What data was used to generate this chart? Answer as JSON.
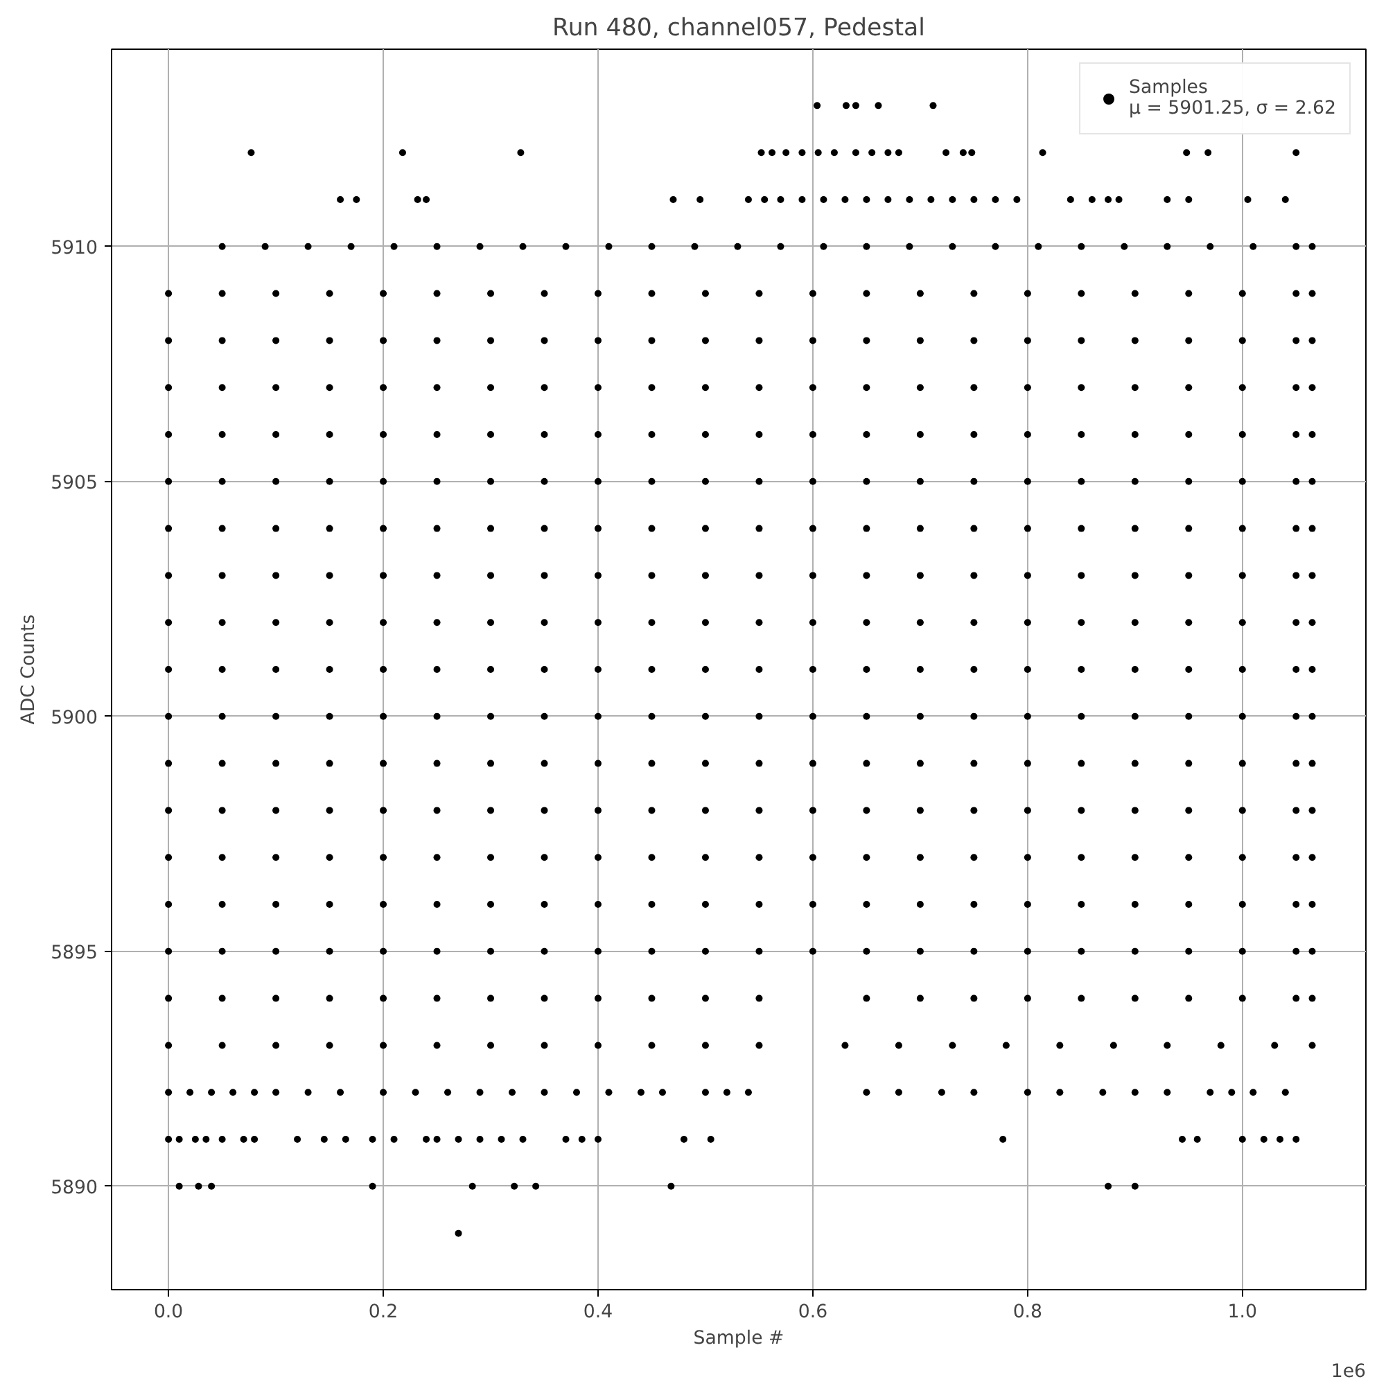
{
  "chart_data": {
    "type": "scatter",
    "title": "Run 480, channel057, Pedestal",
    "xlabel": "Sample #",
    "ylabel": "ADC Counts",
    "annotations": [
      "1e6"
    ],
    "xlim": [
      -0.053,
      1.115
    ],
    "ylim": [
      5887.8,
      5914.2
    ],
    "xticks": [
      {
        "value": 0,
        "label": "0.0"
      },
      0.2,
      0.4,
      0.6,
      0.8,
      {
        "value": 1,
        "label": "1.0"
      }
    ],
    "yticks": [
      5890,
      5895,
      5900,
      5905,
      5910
    ],
    "grid": true,
    "legend": "top right",
    "marker": "circle",
    "series": [
      {
        "name": "Samples\nμ = 5901.25, σ = 2.62",
        "color": "#000000",
        "x": [
          0.604,
          0.631,
          0.64,
          0.661,
          0.712
        ],
        "values": [
          5913,
          5913,
          5913,
          5913,
          5913
        ]
      },
      {
        "color": "#000000",
        "x": [
          0.077,
          0.218,
          0.328,
          0.552,
          0.562,
          0.575,
          0.59,
          0.605,
          0.62,
          0.64,
          0.655,
          0.67,
          0.68,
          0.724,
          0.74,
          0.748,
          0.814,
          0.948,
          0.968,
          1.05
        ],
        "values": [
          5912,
          5912,
          5912,
          5912,
          5912,
          5912,
          5912,
          5912,
          5912,
          5912,
          5912,
          5912,
          5912,
          5912,
          5912,
          5912,
          5912,
          5912,
          5912,
          5912
        ]
      },
      {
        "color": "#000000",
        "x": [
          0.16,
          0.175,
          0.232,
          0.24,
          0.47,
          0.495,
          0.54,
          0.555,
          0.57,
          0.59,
          0.61,
          0.63,
          0.65,
          0.67,
          0.69,
          0.71,
          0.73,
          0.75,
          0.77,
          0.79,
          0.84,
          0.86,
          0.875,
          0.885,
          0.93,
          0.95,
          1.005,
          1.04
        ],
        "values": [
          5911,
          5911,
          5911,
          5911,
          5911,
          5911,
          5911,
          5911,
          5911,
          5911,
          5911,
          5911,
          5911,
          5911,
          5911,
          5911,
          5911,
          5911,
          5911,
          5911,
          5911,
          5911,
          5911,
          5911,
          5911,
          5911,
          5911,
          5911
        ]
      },
      {
        "color": "#000000",
        "x": [
          0.05,
          0.09,
          0.13,
          0.17,
          0.21,
          0.25,
          0.29,
          0.33,
          0.37,
          0.41,
          0.45,
          0.49,
          0.53,
          0.57,
          0.61,
          0.65,
          0.69,
          0.73,
          0.77,
          0.81,
          0.85,
          0.89,
          0.93,
          0.97,
          1.01,
          1.05,
          1.065
        ],
        "values": [
          5910,
          5910,
          5910,
          5910,
          5910,
          5910,
          5910,
          5910,
          5910,
          5910,
          5910,
          5910,
          5910,
          5910,
          5910,
          5910,
          5910,
          5910,
          5910,
          5910,
          5910,
          5910,
          5910,
          5910,
          5910,
          5910,
          5910
        ]
      },
      {
        "color": "#000000",
        "x": [
          0,
          0.05,
          0.1,
          0.15,
          0.2,
          0.25,
          0.3,
          0.35,
          0.4,
          0.45,
          0.5,
          0.55,
          0.6,
          0.65,
          0.7,
          0.75,
          0.8,
          0.85,
          0.9,
          0.95,
          1.0,
          1.05,
          1.065
        ],
        "values": [
          5909,
          5909,
          5909,
          5909,
          5909,
          5909,
          5909,
          5909,
          5909,
          5909,
          5909,
          5909,
          5909,
          5909,
          5909,
          5909,
          5909,
          5909,
          5909,
          5909,
          5909,
          5909,
          5909
        ]
      },
      {
        "color": "#000000",
        "x": [
          0,
          0.05,
          0.1,
          0.15,
          0.2,
          0.25,
          0.3,
          0.35,
          0.4,
          0.45,
          0.5,
          0.55,
          0.6,
          0.65,
          0.7,
          0.75,
          0.8,
          0.85,
          0.9,
          0.95,
          1.0,
          1.05,
          1.065
        ],
        "values": [
          5908,
          5908,
          5908,
          5908,
          5908,
          5908,
          5908,
          5908,
          5908,
          5908,
          5908,
          5908,
          5908,
          5908,
          5908,
          5908,
          5908,
          5908,
          5908,
          5908,
          5908,
          5908,
          5908
        ]
      },
      {
        "color": "#000000",
        "x": [
          0,
          0.05,
          0.1,
          0.15,
          0.2,
          0.25,
          0.3,
          0.35,
          0.4,
          0.45,
          0.5,
          0.55,
          0.6,
          0.65,
          0.7,
          0.75,
          0.8,
          0.85,
          0.9,
          0.95,
          1.0,
          1.05,
          1.065
        ],
        "values": [
          5907,
          5907,
          5907,
          5907,
          5907,
          5907,
          5907,
          5907,
          5907,
          5907,
          5907,
          5907,
          5907,
          5907,
          5907,
          5907,
          5907,
          5907,
          5907,
          5907,
          5907,
          5907,
          5907
        ]
      },
      {
        "color": "#000000",
        "x": [
          0,
          0.05,
          0.1,
          0.15,
          0.2,
          0.25,
          0.3,
          0.35,
          0.4,
          0.45,
          0.5,
          0.55,
          0.6,
          0.65,
          0.7,
          0.75,
          0.8,
          0.85,
          0.9,
          0.95,
          1.0,
          1.05,
          1.065
        ],
        "values": [
          5906,
          5906,
          5906,
          5906,
          5906,
          5906,
          5906,
          5906,
          5906,
          5906,
          5906,
          5906,
          5906,
          5906,
          5906,
          5906,
          5906,
          5906,
          5906,
          5906,
          5906,
          5906,
          5906
        ]
      },
      {
        "color": "#000000",
        "x": [
          0,
          0.05,
          0.1,
          0.15,
          0.2,
          0.25,
          0.3,
          0.35,
          0.4,
          0.45,
          0.5,
          0.55,
          0.6,
          0.65,
          0.7,
          0.75,
          0.8,
          0.85,
          0.9,
          0.95,
          1.0,
          1.05,
          1.065
        ],
        "values": [
          5905,
          5905,
          5905,
          5905,
          5905,
          5905,
          5905,
          5905,
          5905,
          5905,
          5905,
          5905,
          5905,
          5905,
          5905,
          5905,
          5905,
          5905,
          5905,
          5905,
          5905,
          5905,
          5905
        ]
      },
      {
        "color": "#000000",
        "x": [
          0,
          0.05,
          0.1,
          0.15,
          0.2,
          0.25,
          0.3,
          0.35,
          0.4,
          0.45,
          0.5,
          0.55,
          0.6,
          0.65,
          0.7,
          0.75,
          0.8,
          0.85,
          0.9,
          0.95,
          1.0,
          1.05,
          1.065
        ],
        "values": [
          5904,
          5904,
          5904,
          5904,
          5904,
          5904,
          5904,
          5904,
          5904,
          5904,
          5904,
          5904,
          5904,
          5904,
          5904,
          5904,
          5904,
          5904,
          5904,
          5904,
          5904,
          5904,
          5904
        ]
      },
      {
        "color": "#000000",
        "x": [
          0,
          0.05,
          0.1,
          0.15,
          0.2,
          0.25,
          0.3,
          0.35,
          0.4,
          0.45,
          0.5,
          0.55,
          0.6,
          0.65,
          0.7,
          0.75,
          0.8,
          0.85,
          0.9,
          0.95,
          1.0,
          1.05,
          1.065
        ],
        "values": [
          5903,
          5903,
          5903,
          5903,
          5903,
          5903,
          5903,
          5903,
          5903,
          5903,
          5903,
          5903,
          5903,
          5903,
          5903,
          5903,
          5903,
          5903,
          5903,
          5903,
          5903,
          5903,
          5903
        ]
      },
      {
        "color": "#000000",
        "x": [
          0,
          0.05,
          0.1,
          0.15,
          0.2,
          0.25,
          0.3,
          0.35,
          0.4,
          0.45,
          0.5,
          0.55,
          0.6,
          0.65,
          0.7,
          0.75,
          0.8,
          0.85,
          0.9,
          0.95,
          1.0,
          1.05,
          1.065
        ],
        "values": [
          5902,
          5902,
          5902,
          5902,
          5902,
          5902,
          5902,
          5902,
          5902,
          5902,
          5902,
          5902,
          5902,
          5902,
          5902,
          5902,
          5902,
          5902,
          5902,
          5902,
          5902,
          5902,
          5902
        ]
      },
      {
        "color": "#000000",
        "x": [
          0,
          0.05,
          0.1,
          0.15,
          0.2,
          0.25,
          0.3,
          0.35,
          0.4,
          0.45,
          0.5,
          0.55,
          0.6,
          0.65,
          0.7,
          0.75,
          0.8,
          0.85,
          0.9,
          0.95,
          1.0,
          1.05,
          1.065
        ],
        "values": [
          5901,
          5901,
          5901,
          5901,
          5901,
          5901,
          5901,
          5901,
          5901,
          5901,
          5901,
          5901,
          5901,
          5901,
          5901,
          5901,
          5901,
          5901,
          5901,
          5901,
          5901,
          5901,
          5901
        ]
      },
      {
        "color": "#000000",
        "x": [
          0,
          0.05,
          0.1,
          0.15,
          0.2,
          0.25,
          0.3,
          0.35,
          0.4,
          0.45,
          0.5,
          0.55,
          0.6,
          0.65,
          0.7,
          0.75,
          0.8,
          0.85,
          0.9,
          0.95,
          1.0,
          1.05,
          1.065
        ],
        "values": [
          5900,
          5900,
          5900,
          5900,
          5900,
          5900,
          5900,
          5900,
          5900,
          5900,
          5900,
          5900,
          5900,
          5900,
          5900,
          5900,
          5900,
          5900,
          5900,
          5900,
          5900,
          5900,
          5900
        ]
      },
      {
        "color": "#000000",
        "x": [
          0,
          0.05,
          0.1,
          0.15,
          0.2,
          0.25,
          0.3,
          0.35,
          0.4,
          0.45,
          0.5,
          0.55,
          0.6,
          0.65,
          0.7,
          0.75,
          0.8,
          0.85,
          0.9,
          0.95,
          1.0,
          1.05,
          1.065
        ],
        "values": [
          5899,
          5899,
          5899,
          5899,
          5899,
          5899,
          5899,
          5899,
          5899,
          5899,
          5899,
          5899,
          5899,
          5899,
          5899,
          5899,
          5899,
          5899,
          5899,
          5899,
          5899,
          5899,
          5899
        ]
      },
      {
        "color": "#000000",
        "x": [
          0,
          0.05,
          0.1,
          0.15,
          0.2,
          0.25,
          0.3,
          0.35,
          0.4,
          0.45,
          0.5,
          0.55,
          0.6,
          0.65,
          0.7,
          0.75,
          0.8,
          0.85,
          0.9,
          0.95,
          1.0,
          1.05,
          1.065
        ],
        "values": [
          5898,
          5898,
          5898,
          5898,
          5898,
          5898,
          5898,
          5898,
          5898,
          5898,
          5898,
          5898,
          5898,
          5898,
          5898,
          5898,
          5898,
          5898,
          5898,
          5898,
          5898,
          5898,
          5898
        ]
      },
      {
        "color": "#000000",
        "x": [
          0,
          0.05,
          0.1,
          0.15,
          0.2,
          0.25,
          0.3,
          0.35,
          0.4,
          0.45,
          0.5,
          0.55,
          0.6,
          0.65,
          0.7,
          0.75,
          0.8,
          0.85,
          0.9,
          0.95,
          1.0,
          1.05,
          1.065
        ],
        "values": [
          5897,
          5897,
          5897,
          5897,
          5897,
          5897,
          5897,
          5897,
          5897,
          5897,
          5897,
          5897,
          5897,
          5897,
          5897,
          5897,
          5897,
          5897,
          5897,
          5897,
          5897,
          5897,
          5897
        ]
      },
      {
        "color": "#000000",
        "x": [
          0,
          0.05,
          0.1,
          0.15,
          0.2,
          0.25,
          0.3,
          0.35,
          0.4,
          0.45,
          0.5,
          0.55,
          0.6,
          0.65,
          0.7,
          0.75,
          0.8,
          0.85,
          0.9,
          0.95,
          1.0,
          1.05,
          1.065
        ],
        "values": [
          5896,
          5896,
          5896,
          5896,
          5896,
          5896,
          5896,
          5896,
          5896,
          5896,
          5896,
          5896,
          5896,
          5896,
          5896,
          5896,
          5896,
          5896,
          5896,
          5896,
          5896,
          5896,
          5896
        ]
      },
      {
        "color": "#000000",
        "x": [
          0,
          0.05,
          0.1,
          0.15,
          0.2,
          0.25,
          0.3,
          0.35,
          0.4,
          0.45,
          0.5,
          0.55,
          0.6,
          0.65,
          0.7,
          0.75,
          0.8,
          0.85,
          0.9,
          0.95,
          1.0,
          1.05,
          1.065
        ],
        "values": [
          5895,
          5895,
          5895,
          5895,
          5895,
          5895,
          5895,
          5895,
          5895,
          5895,
          5895,
          5895,
          5895,
          5895,
          5895,
          5895,
          5895,
          5895,
          5895,
          5895,
          5895,
          5895,
          5895
        ]
      },
      {
        "color": "#000000",
        "x": [
          0,
          0.05,
          0.1,
          0.15,
          0.2,
          0.25,
          0.3,
          0.35,
          0.4,
          0.45,
          0.5,
          0.55,
          0.65,
          0.7,
          0.75,
          0.8,
          0.85,
          0.9,
          0.95,
          1.0,
          1.05,
          1.065
        ],
        "values": [
          5894,
          5894,
          5894,
          5894,
          5894,
          5894,
          5894,
          5894,
          5894,
          5894,
          5894,
          5894,
          5894,
          5894,
          5894,
          5894,
          5894,
          5894,
          5894,
          5894,
          5894,
          5894
        ]
      },
      {
        "color": "#000000",
        "x": [
          0,
          0.05,
          0.1,
          0.15,
          0.2,
          0.25,
          0.3,
          0.35,
          0.4,
          0.45,
          0.5,
          0.55,
          0.63,
          0.68,
          0.73,
          0.78,
          0.83,
          0.88,
          0.93,
          0.98,
          1.03,
          1.065
        ],
        "values": [
          5893,
          5893,
          5893,
          5893,
          5893,
          5893,
          5893,
          5893,
          5893,
          5893,
          5893,
          5893,
          5893,
          5893,
          5893,
          5893,
          5893,
          5893,
          5893,
          5893,
          5893,
          5893
        ]
      },
      {
        "color": "#000000",
        "x": [
          0,
          0.02,
          0.04,
          0.06,
          0.08,
          0.1,
          0.13,
          0.16,
          0.2,
          0.23,
          0.26,
          0.29,
          0.32,
          0.35,
          0.38,
          0.41,
          0.44,
          0.46,
          0.5,
          0.52,
          0.54,
          0.65,
          0.68,
          0.72,
          0.75,
          0.8,
          0.83,
          0.87,
          0.9,
          0.93,
          0.97,
          0.99,
          1.01,
          1.04
        ],
        "values": [
          5892,
          5892,
          5892,
          5892,
          5892,
          5892,
          5892,
          5892,
          5892,
          5892,
          5892,
          5892,
          5892,
          5892,
          5892,
          5892,
          5892,
          5892,
          5892,
          5892,
          5892,
          5892,
          5892,
          5892,
          5892,
          5892,
          5892,
          5892,
          5892,
          5892,
          5892,
          5892,
          5892,
          5892
        ]
      },
      {
        "color": "#000000",
        "x": [
          0,
          0.01,
          0.025,
          0.035,
          0.05,
          0.07,
          0.08,
          0.12,
          0.145,
          0.165,
          0.19,
          0.21,
          0.24,
          0.25,
          0.27,
          0.29,
          0.31,
          0.33,
          0.37,
          0.385,
          0.4,
          0.48,
          0.505,
          0.777,
          0.944,
          0.958,
          1.0,
          1.02,
          1.035,
          1.05
        ],
        "values": [
          5891,
          5891,
          5891,
          5891,
          5891,
          5891,
          5891,
          5891,
          5891,
          5891,
          5891,
          5891,
          5891,
          5891,
          5891,
          5891,
          5891,
          5891,
          5891,
          5891,
          5891,
          5891,
          5891,
          5891,
          5891,
          5891,
          5891,
          5891,
          5891,
          5891
        ]
      },
      {
        "color": "#000000",
        "x": [
          0.01,
          0.028,
          0.04,
          0.19,
          0.283,
          0.322,
          0.342,
          0.468,
          0.875,
          0.9
        ],
        "values": [
          5890,
          5890,
          5890,
          5890,
          5890,
          5890,
          5890,
          5890,
          5890,
          5890
        ]
      },
      {
        "color": "#000000",
        "x": [
          0.27
        ],
        "values": [
          5889
        ]
      }
    ]
  }
}
